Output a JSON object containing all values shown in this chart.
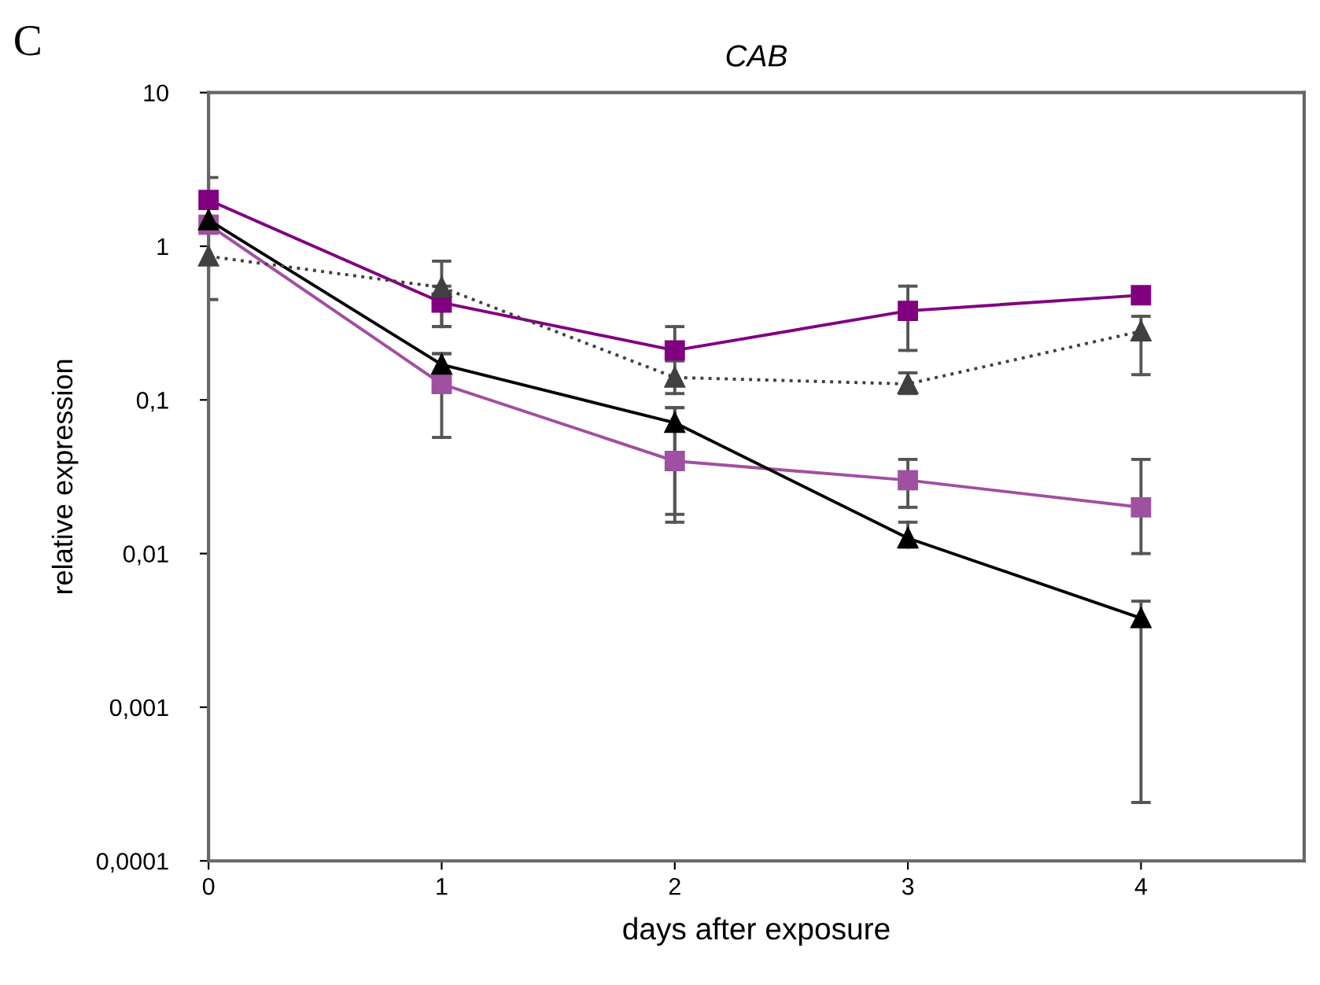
{
  "chart_data": {
    "type": "line",
    "title": "CAB",
    "xlabel": "days after exposure",
    "ylabel": "relative expression",
    "annotations": [
      "C"
    ],
    "x": [
      0,
      1,
      2,
      3,
      4
    ],
    "log": "y",
    "grid": false,
    "xlim": [
      0,
      4.7
    ],
    "xticks": [
      0,
      1,
      2,
      3,
      4
    ],
    "ylim": [
      0.0001,
      10
    ],
    "yticks": [
      {
        "value": 0.0001,
        "label": "0,0001"
      },
      {
        "value": 0.001,
        "label": "0,001"
      },
      {
        "value": 0.01,
        "label": "0,01"
      },
      {
        "value": 0.1,
        "label": "0,1"
      },
      1,
      10
    ],
    "series": [
      {
        "color": "#800080",
        "marker": "square",
        "line_style": "solid",
        "values": [
          2.0,
          0.43,
          0.21,
          0.38,
          0.48
        ],
        "errors": [
          [
            2.0,
            2.8
          ],
          [
            0.3,
            0.55
          ],
          [
            0.18,
            0.3
          ],
          [
            0.21,
            0.55
          ],
          null
        ]
      },
      {
        "color": "#a050a0",
        "marker": "square",
        "line_style": "solid",
        "values": [
          1.38,
          0.127,
          0.04,
          0.03,
          0.02
        ],
        "errors": [
          null,
          [
            0.057,
            0.2
          ],
          [
            0.016,
            0.089
          ],
          [
            0.02,
            0.041
          ],
          [
            0.01,
            0.041
          ]
        ]
      },
      {
        "color": "#000000",
        "marker": "triangle",
        "line_style": "solid",
        "values": [
          1.48,
          0.17,
          0.071,
          0.0126,
          0.0038
        ],
        "errors": [
          null,
          [
            0.14,
            0.2
          ],
          [
            0.018,
            0.089
          ],
          [
            0.011,
            0.016
          ],
          [
            0.00024,
            0.0049
          ]
        ]
      },
      {
        "color": "#404040",
        "marker": "triangle",
        "line_style": "dotted",
        "values": [
          0.86,
          0.54,
          0.14,
          0.127,
          0.28
        ],
        "errors": [
          [
            0.45,
            1.3
          ],
          [
            0.3,
            0.8
          ],
          [
            0.11,
            0.18
          ],
          [
            0.11,
            0.15
          ],
          [
            0.146,
            0.35
          ]
        ]
      }
    ]
  }
}
